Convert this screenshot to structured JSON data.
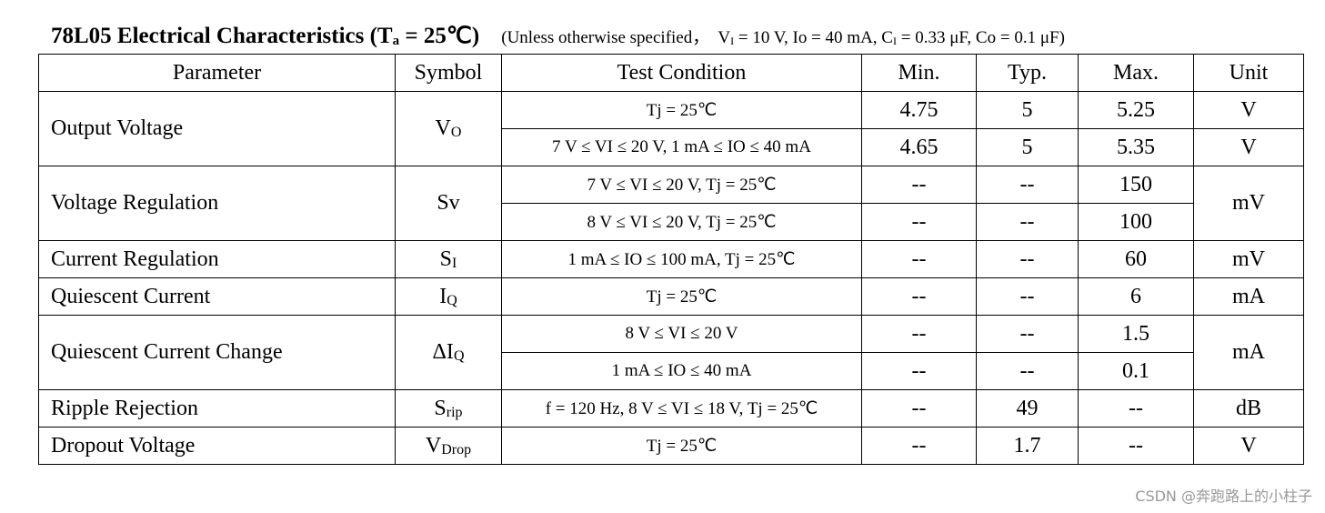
{
  "header": {
    "title": [
      "78L05 Electrical Characteristics (T",
      "a",
      " = 25℃)"
    ],
    "note": [
      "(Unless otherwise specified，  V",
      "I",
      " = 10 V, Io = 40 mA, C",
      "I",
      " = 0.33 μF, Co = 0.1 μF)"
    ]
  },
  "table": {
    "columns": [
      "Parameter",
      "Symbol",
      "Test Condition",
      "Min.",
      "Typ.",
      "Max.",
      "Unit"
    ],
    "groups": [
      {
        "parameter": "Output Voltage",
        "symbol": {
          "main": "V",
          "sub": "O"
        },
        "rows": [
          {
            "condition": "Tj = 25℃",
            "min": "4.75",
            "typ": "5",
            "max": "5.25",
            "unit": "V"
          },
          {
            "condition": "7 V ≤ VI ≤ 20 V, 1 mA ≤ IO ≤ 40 mA",
            "min": "4.65",
            "typ": "5",
            "max": "5.35",
            "unit": "V"
          }
        ]
      },
      {
        "parameter": "Voltage Regulation",
        "symbol": {
          "main": "Sv",
          "sub": ""
        },
        "unit": "mV",
        "rows": [
          {
            "condition": "7 V ≤ VI ≤ 20 V, Tj = 25℃",
            "min": "--",
            "typ": "--",
            "max": "150"
          },
          {
            "condition": "8 V ≤ VI ≤ 20 V, Tj = 25℃",
            "min": "--",
            "typ": "--",
            "max": "100"
          }
        ]
      },
      {
        "parameter": "Current Regulation",
        "symbol": {
          "main": "S",
          "sub": "I"
        },
        "unit": "mV",
        "rows": [
          {
            "condition": "1 mA ≤ IO ≤ 100 mA, Tj = 25℃",
            "min": "--",
            "typ": "--",
            "max": "60"
          }
        ]
      },
      {
        "parameter": "Quiescent Current",
        "symbol": {
          "main": "I",
          "sub": "Q"
        },
        "unit": "mA",
        "rows": [
          {
            "condition": "Tj = 25℃",
            "min": "--",
            "typ": "--",
            "max": "6"
          }
        ]
      },
      {
        "parameter": "Quiescent Current Change",
        "symbol": {
          "main": "ΔI",
          "sub": "Q"
        },
        "unit": "mA",
        "rows": [
          {
            "condition": "8 V ≤ VI ≤ 20 V",
            "min": "--",
            "typ": "--",
            "max": "1.5"
          },
          {
            "condition": "1 mA ≤ IO ≤ 40 mA",
            "min": "--",
            "typ": "--",
            "max": "0.1"
          }
        ]
      },
      {
        "parameter": "Ripple Rejection",
        "symbol": {
          "main": "S",
          "sub": "rip"
        },
        "unit": "dB",
        "rows": [
          {
            "condition": "f = 120 Hz, 8 V ≤ VI ≤ 18 V, Tj = 25℃",
            "min": "--",
            "typ": "49",
            "max": "--"
          }
        ]
      },
      {
        "parameter": "Dropout Voltage",
        "symbol": {
          "main": "V",
          "sub": "Drop"
        },
        "unit": "V",
        "rows": [
          {
            "condition": "Tj = 25℃",
            "min": "--",
            "typ": "1.7",
            "max": "--"
          }
        ]
      }
    ]
  },
  "watermark": "CSDN @奔跑路上的小柱子"
}
